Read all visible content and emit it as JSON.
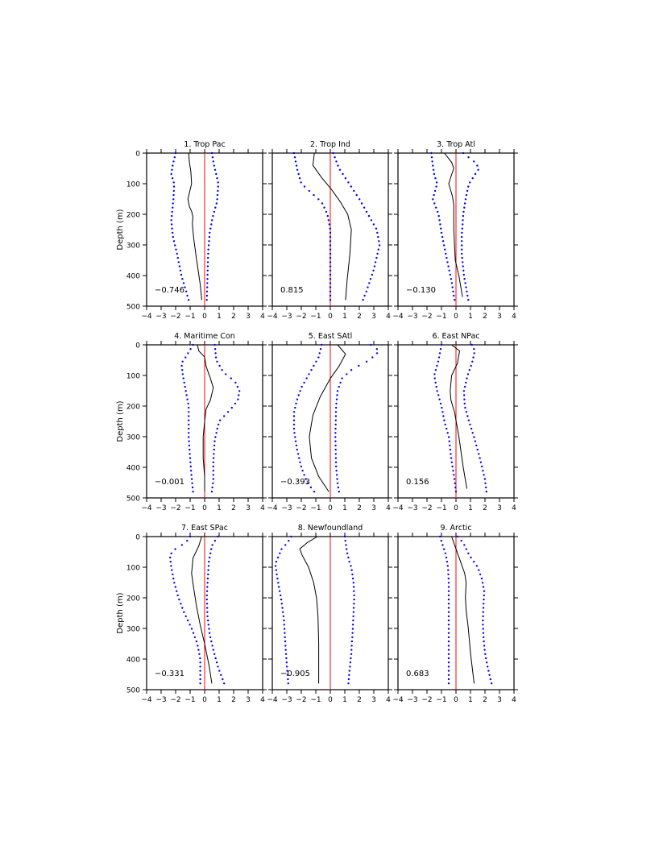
{
  "chart_data": {
    "type": "line",
    "xlim": [
      -4,
      4
    ],
    "ylim": [
      0,
      500
    ],
    "y_inverted": true,
    "xticks": [
      -4,
      -3,
      -2,
      -1,
      0,
      1,
      2,
      3,
      4
    ],
    "xtick_labels": [
      "−4",
      "−3",
      "−2",
      "−1",
      "0",
      "1",
      "2",
      "3",
      "4"
    ],
    "yticks": [
      0,
      100,
      200,
      300,
      400,
      500
    ],
    "ytick_labels": [
      "0",
      "100",
      "200",
      "300",
      "400",
      "500"
    ],
    "ylabel": "Depth (m)",
    "colors": {
      "line": "#000000",
      "bounds": "#0000ff",
      "zero_line": "#ff0000"
    },
    "panels": [
      {
        "title": "1. Trop Pac",
        "value_label": "−0.746",
        "line": [
          [
            -1.1,
            0
          ],
          [
            -1.05,
            30
          ],
          [
            -0.95,
            60
          ],
          [
            -0.9,
            100
          ],
          [
            -1.15,
            150
          ],
          [
            -1.05,
            175
          ],
          [
            -0.9,
            190
          ],
          [
            -0.8,
            210
          ],
          [
            -0.85,
            230
          ],
          [
            -0.75,
            280
          ],
          [
            -0.55,
            350
          ],
          [
            -0.3,
            430
          ],
          [
            -0.2,
            480
          ]
        ],
        "lower": [
          [
            -2.0,
            0
          ],
          [
            -2.2,
            40
          ],
          [
            -2.3,
            70
          ],
          [
            -2.1,
            100
          ],
          [
            -2.15,
            150
          ],
          [
            -2.3,
            220
          ],
          [
            -2.2,
            270
          ],
          [
            -1.9,
            330
          ],
          [
            -1.6,
            400
          ],
          [
            -1.35,
            440
          ],
          [
            -1.1,
            480
          ]
        ],
        "upper": [
          [
            0.5,
            0
          ],
          [
            0.65,
            40
          ],
          [
            0.95,
            100
          ],
          [
            0.85,
            160
          ],
          [
            0.55,
            210
          ],
          [
            0.35,
            260
          ],
          [
            0.25,
            320
          ],
          [
            0.2,
            400
          ],
          [
            0.15,
            480
          ]
        ]
      },
      {
        "title": "2. Trop Ind",
        "value_label": "0.815",
        "line": [
          [
            -1.1,
            0
          ],
          [
            -1.2,
            40
          ],
          [
            -0.6,
            80
          ],
          [
            0.1,
            120
          ],
          [
            0.7,
            160
          ],
          [
            1.2,
            200
          ],
          [
            1.45,
            250
          ],
          [
            1.35,
            330
          ],
          [
            1.15,
            420
          ],
          [
            1.05,
            480
          ]
        ],
        "lower": [
          [
            -2.5,
            0
          ],
          [
            -2.3,
            50
          ],
          [
            -2.0,
            100
          ],
          [
            -1.3,
            130
          ],
          [
            -0.6,
            160
          ],
          [
            -0.2,
            200
          ],
          [
            0.0,
            250
          ],
          [
            0.0,
            480
          ]
        ],
        "upper": [
          [
            0.2,
            0
          ],
          [
            0.6,
            50
          ],
          [
            1.3,
            100
          ],
          [
            2.0,
            150
          ],
          [
            2.6,
            200
          ],
          [
            3.2,
            250
          ],
          [
            3.4,
            300
          ],
          [
            3.0,
            380
          ],
          [
            2.5,
            450
          ],
          [
            2.25,
            480
          ]
        ]
      },
      {
        "title": "3. Trop Atl",
        "value_label": "−0.130",
        "line": [
          [
            -0.8,
            0
          ],
          [
            -0.3,
            30
          ],
          [
            -0.15,
            50
          ],
          [
            -0.3,
            70
          ],
          [
            -0.5,
            100
          ],
          [
            -0.25,
            140
          ],
          [
            -0.15,
            170
          ],
          [
            -0.15,
            250
          ],
          [
            -0.05,
            350
          ],
          [
            0.2,
            400
          ],
          [
            0.45,
            470
          ]
        ],
        "lower": [
          [
            -1.7,
            0
          ],
          [
            -1.6,
            40
          ],
          [
            -1.5,
            70
          ],
          [
            -1.3,
            100
          ],
          [
            -1.6,
            150
          ],
          [
            -1.2,
            200
          ],
          [
            -1.0,
            260
          ],
          [
            -0.7,
            330
          ],
          [
            -0.3,
            420
          ],
          [
            -0.1,
            480
          ]
        ],
        "upper": [
          [
            0.5,
            0
          ],
          [
            1.3,
            30
          ],
          [
            1.6,
            50
          ],
          [
            0.9,
            100
          ],
          [
            0.7,
            140
          ],
          [
            0.5,
            200
          ],
          [
            0.4,
            270
          ],
          [
            0.4,
            330
          ],
          [
            0.55,
            400
          ],
          [
            0.85,
            480
          ]
        ]
      },
      {
        "title": "4. Maritime Con",
        "value_label": "−0.001",
        "line": [
          [
            -0.5,
            0
          ],
          [
            -0.4,
            20
          ],
          [
            0.0,
            40
          ],
          [
            0.1,
            70
          ],
          [
            0.4,
            110
          ],
          [
            0.6,
            140
          ],
          [
            0.4,
            180
          ],
          [
            0.1,
            210
          ],
          [
            0.0,
            250
          ],
          [
            -0.1,
            300
          ],
          [
            -0.1,
            370
          ],
          [
            0.0,
            430
          ],
          [
            0.0,
            480
          ]
        ],
        "lower": [
          [
            -0.8,
            0
          ],
          [
            -1.3,
            40
          ],
          [
            -1.6,
            60
          ],
          [
            -1.5,
            100
          ],
          [
            -1.3,
            150
          ],
          [
            -1.1,
            200
          ],
          [
            -1.1,
            250
          ],
          [
            -1.1,
            300
          ],
          [
            -1.0,
            370
          ],
          [
            -0.9,
            430
          ],
          [
            -0.8,
            480
          ]
        ],
        "upper": [
          [
            0.7,
            0
          ],
          [
            0.8,
            50
          ],
          [
            1.3,
            90
          ],
          [
            2.1,
            120
          ],
          [
            2.4,
            150
          ],
          [
            2.3,
            180
          ],
          [
            1.8,
            210
          ],
          [
            1.0,
            250
          ],
          [
            0.7,
            310
          ],
          [
            0.6,
            380
          ],
          [
            0.6,
            440
          ],
          [
            0.5,
            480
          ]
        ]
      },
      {
        "title": "5. East SAtl",
        "value_label": "−0.393",
        "line": [
          [
            0.5,
            0
          ],
          [
            1.05,
            30
          ],
          [
            0.6,
            70
          ],
          [
            0.0,
            110
          ],
          [
            -0.7,
            170
          ],
          [
            -1.2,
            230
          ],
          [
            -1.45,
            300
          ],
          [
            -1.3,
            370
          ],
          [
            -0.8,
            430
          ],
          [
            -0.1,
            480
          ]
        ],
        "lower": [
          [
            -0.6,
            0
          ],
          [
            -0.8,
            40
          ],
          [
            -1.4,
            90
          ],
          [
            -2.0,
            140
          ],
          [
            -2.3,
            180
          ],
          [
            -2.5,
            220
          ],
          [
            -2.5,
            280
          ],
          [
            -2.3,
            340
          ],
          [
            -2.0,
            400
          ],
          [
            -1.6,
            450
          ],
          [
            -1.1,
            480
          ]
        ],
        "upper": [
          [
            2.8,
            0
          ],
          [
            3.4,
            20
          ],
          [
            2.7,
            50
          ],
          [
            1.5,
            80
          ],
          [
            0.8,
            110
          ],
          [
            0.5,
            150
          ],
          [
            0.4,
            200
          ],
          [
            0.35,
            300
          ],
          [
            0.4,
            400
          ],
          [
            0.5,
            450
          ],
          [
            0.6,
            480
          ]
        ]
      },
      {
        "title": "6. East NPac",
        "value_label": "0.156",
        "line": [
          [
            -0.3,
            0
          ],
          [
            0.25,
            20
          ],
          [
            0.1,
            60
          ],
          [
            -0.3,
            100
          ],
          [
            -0.4,
            150
          ],
          [
            -0.35,
            180
          ],
          [
            -0.1,
            220
          ],
          [
            0.2,
            300
          ],
          [
            0.5,
            400
          ],
          [
            0.75,
            470
          ]
        ],
        "lower": [
          [
            -1.0,
            0
          ],
          [
            -1.2,
            50
          ],
          [
            -1.5,
            100
          ],
          [
            -1.3,
            150
          ],
          [
            -1.0,
            200
          ],
          [
            -0.8,
            250
          ],
          [
            -0.5,
            300
          ],
          [
            -0.3,
            380
          ],
          [
            -0.1,
            440
          ],
          [
            0.0,
            480
          ]
        ],
        "upper": [
          [
            1.1,
            0
          ],
          [
            1.3,
            20
          ],
          [
            1.1,
            60
          ],
          [
            0.8,
            100
          ],
          [
            0.55,
            150
          ],
          [
            0.6,
            200
          ],
          [
            0.9,
            250
          ],
          [
            1.3,
            310
          ],
          [
            1.7,
            380
          ],
          [
            2.0,
            440
          ],
          [
            2.1,
            480
          ]
        ]
      },
      {
        "title": "7. East SPac",
        "value_label": "−0.331",
        "line": [
          [
            -0.2,
            0
          ],
          [
            -0.4,
            30
          ],
          [
            -0.8,
            70
          ],
          [
            -0.9,
            120
          ],
          [
            -0.75,
            170
          ],
          [
            -0.55,
            230
          ],
          [
            -0.3,
            290
          ],
          [
            0.0,
            350
          ],
          [
            0.3,
            420
          ],
          [
            0.5,
            480
          ]
        ],
        "lower": [
          [
            -1.0,
            0
          ],
          [
            -1.3,
            20
          ],
          [
            -2.0,
            40
          ],
          [
            -2.4,
            60
          ],
          [
            -2.3,
            100
          ],
          [
            -2.1,
            150
          ],
          [
            -1.8,
            200
          ],
          [
            -1.4,
            250
          ],
          [
            -0.9,
            300
          ],
          [
            -0.5,
            350
          ],
          [
            -0.3,
            400
          ],
          [
            -0.3,
            480
          ]
        ],
        "upper": [
          [
            0.9,
            0
          ],
          [
            0.5,
            30
          ],
          [
            0.3,
            80
          ],
          [
            0.2,
            150
          ],
          [
            0.15,
            200
          ],
          [
            0.2,
            260
          ],
          [
            0.35,
            320
          ],
          [
            0.6,
            370
          ],
          [
            0.95,
            430
          ],
          [
            1.35,
            480
          ]
        ]
      },
      {
        "title": "8. Newfoundland",
        "value_label": "−0.905",
        "line": [
          [
            -0.9,
            0
          ],
          [
            -1.6,
            20
          ],
          [
            -2.1,
            40
          ],
          [
            -1.95,
            60
          ],
          [
            -1.5,
            100
          ],
          [
            -1.15,
            150
          ],
          [
            -0.95,
            200
          ],
          [
            -0.85,
            260
          ],
          [
            -0.8,
            350
          ],
          [
            -0.8,
            480
          ]
        ],
        "lower": [
          [
            -2.7,
            0
          ],
          [
            -2.95,
            20
          ],
          [
            -3.35,
            40
          ],
          [
            -3.8,
            90
          ],
          [
            -3.6,
            150
          ],
          [
            -3.4,
            200
          ],
          [
            -3.2,
            270
          ],
          [
            -3.1,
            350
          ],
          [
            -3.0,
            420
          ],
          [
            -2.9,
            480
          ]
        ],
        "upper": [
          [
            1.0,
            0
          ],
          [
            1.15,
            50
          ],
          [
            1.3,
            80
          ],
          [
            1.45,
            100
          ],
          [
            1.6,
            150
          ],
          [
            1.65,
            200
          ],
          [
            1.6,
            250
          ],
          [
            1.55,
            300
          ],
          [
            1.45,
            380
          ],
          [
            1.3,
            450
          ],
          [
            1.25,
            480
          ]
        ]
      },
      {
        "title": "9. Arctic",
        "value_label": "0.683",
        "line": [
          [
            -0.3,
            0
          ],
          [
            0.0,
            40
          ],
          [
            0.3,
            80
          ],
          [
            0.6,
            120
          ],
          [
            0.7,
            150
          ],
          [
            0.65,
            200
          ],
          [
            0.7,
            240
          ],
          [
            0.85,
            300
          ],
          [
            1.0,
            380
          ],
          [
            1.15,
            440
          ],
          [
            1.25,
            480
          ]
        ],
        "lower": [
          [
            -1.1,
            0
          ],
          [
            -0.9,
            30
          ],
          [
            -0.7,
            60
          ],
          [
            -0.55,
            100
          ],
          [
            -0.5,
            150
          ],
          [
            -0.5,
            250
          ],
          [
            -0.5,
            480
          ]
        ],
        "upper": [
          [
            0.1,
            0
          ],
          [
            0.5,
            20
          ],
          [
            0.9,
            60
          ],
          [
            1.5,
            100
          ],
          [
            1.8,
            140
          ],
          [
            1.95,
            180
          ],
          [
            1.9,
            220
          ],
          [
            1.85,
            280
          ],
          [
            1.9,
            330
          ],
          [
            2.0,
            380
          ],
          [
            2.2,
            430
          ],
          [
            2.45,
            480
          ]
        ]
      }
    ]
  }
}
